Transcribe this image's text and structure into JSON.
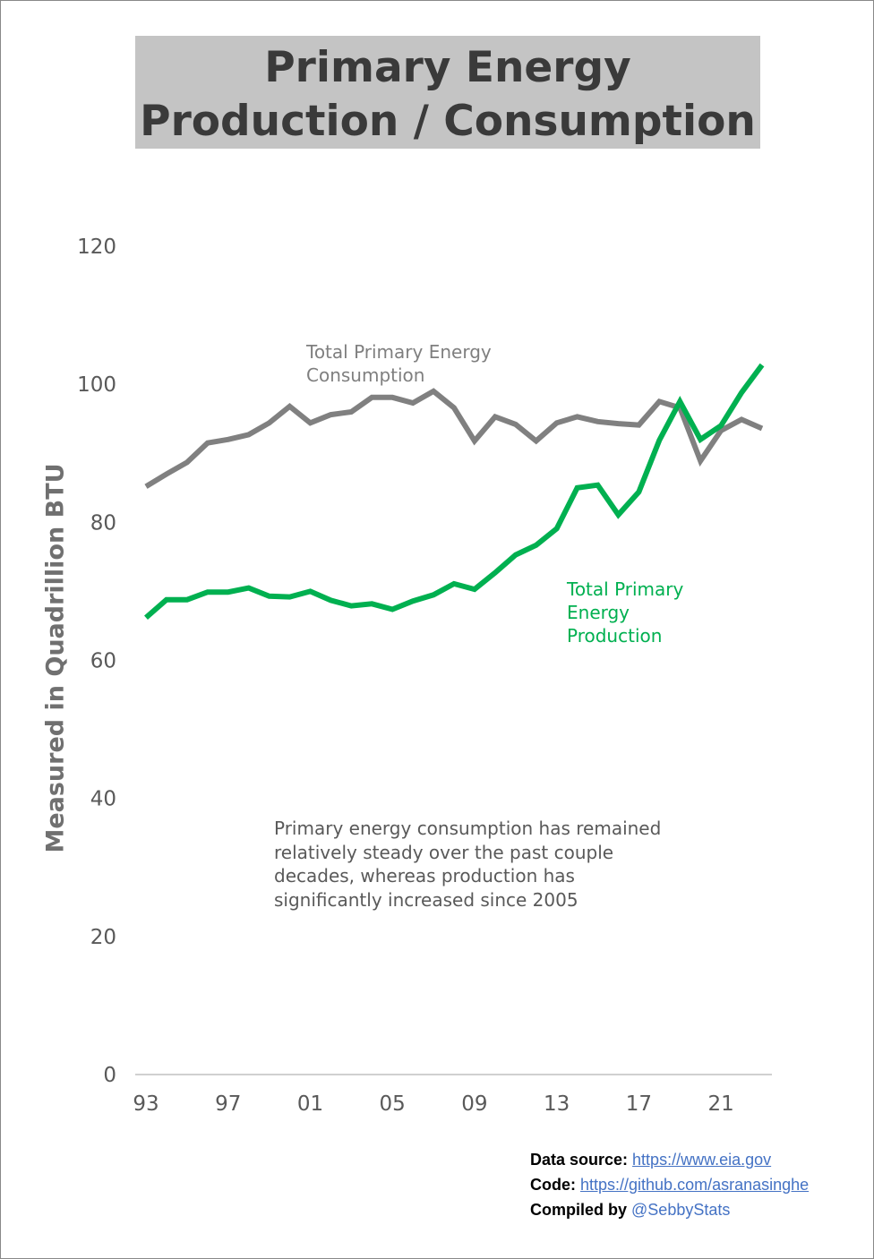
{
  "chart_data": {
    "type": "line",
    "title": "Primary Energy Production / Consumption",
    "ylabel": "Measured in Quadrillion BTU",
    "xlabel": "",
    "ylim": [
      0,
      120
    ],
    "yticks": [
      "0",
      "20",
      "40",
      "60",
      "80",
      "100",
      "120"
    ],
    "xticks": [
      "93",
      "97",
      "01",
      "05",
      "09",
      "13",
      "17",
      "21"
    ],
    "grid": false,
    "x": [
      1993,
      1994,
      1995,
      1996,
      1997,
      1998,
      1999,
      2000,
      2001,
      2002,
      2003,
      2004,
      2005,
      2006,
      2007,
      2008,
      2009,
      2010,
      2011,
      2012,
      2013,
      2014,
      2015,
      2016,
      2017,
      2018,
      2019,
      2020,
      2021,
      2022,
      2023
    ],
    "series": [
      {
        "name": "Total Primary Energy Consumption",
        "color": "#808080",
        "values": [
          85.2,
          87.0,
          88.7,
          91.5,
          92.0,
          92.7,
          94.4,
          96.8,
          94.4,
          95.6,
          96.0,
          98.1,
          98.1,
          97.3,
          99.0,
          96.6,
          91.8,
          95.3,
          94.2,
          91.8,
          94.4,
          95.3,
          94.6,
          94.3,
          94.1,
          97.5,
          96.6,
          88.9,
          93.3,
          94.9,
          93.6
        ]
      },
      {
        "name": "Total Primary Energy Production",
        "color": "#00b050",
        "values": [
          66.2,
          68.8,
          68.8,
          69.9,
          69.9,
          70.5,
          69.3,
          69.2,
          70.0,
          68.7,
          67.9,
          68.2,
          67.4,
          68.6,
          69.5,
          71.1,
          70.3,
          72.7,
          75.3,
          76.7,
          79.1,
          85.0,
          85.4,
          81.1,
          84.4,
          91.9,
          97.5,
          92.0,
          94.0,
          98.8,
          102.8
        ]
      }
    ],
    "annotations": {
      "consumption_label": [
        "Total Primary Energy",
        "Consumption"
      ],
      "production_label": [
        "Total Primary",
        "Energy",
        "Production"
      ],
      "note": "Primary energy consumption has remained relatively steady over the past couple decades, whereas production has significantly increased since 2005"
    }
  },
  "footer": {
    "source_label": "Data source",
    "source_url": "https://www.eia.gov",
    "code_label": "Code",
    "code_url": "https://github.com/asranasinghe",
    "compiled_label": "Compiled by",
    "compiled_handle": "@SebbyStats"
  }
}
